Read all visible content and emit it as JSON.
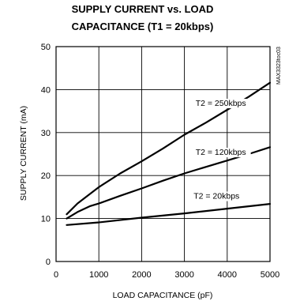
{
  "chart_data": {
    "type": "line",
    "title_lines": [
      "SUPPLY CURRENT vs. LOAD",
      "CAPACITANCE (T1 = 20kbps)"
    ],
    "xlabel": "LOAD CAPACITANCE (pF)",
    "ylabel": "SUPPLY CURRENT (mA)",
    "xlim": [
      0,
      5000
    ],
    "ylim": [
      0,
      50
    ],
    "x_ticks": [
      0,
      1000,
      2000,
      3000,
      4000,
      5000
    ],
    "y_ticks": [
      0,
      10,
      20,
      30,
      40,
      50
    ],
    "grid": true,
    "annotation": "MAX3323toc03",
    "series": [
      {
        "name": "T2 = 250kbps",
        "x": [
          250,
          500,
          1000,
          1500,
          2000,
          2500,
          3000,
          3500,
          4000,
          4500,
          5000
        ],
        "values": [
          11.0,
          13.5,
          17.3,
          20.5,
          23.3,
          26.3,
          29.5,
          32.3,
          35.3,
          38.3,
          41.6
        ]
      },
      {
        "name": "T2 = 120kbps",
        "x": [
          250,
          500,
          800,
          1000,
          1500,
          2000,
          2500,
          3000,
          3500,
          4000,
          4500,
          5000
        ],
        "values": [
          10.0,
          11.5,
          12.9,
          13.5,
          15.3,
          17.0,
          18.8,
          20.5,
          22.0,
          23.5,
          25.0,
          26.6
        ]
      },
      {
        "name": "T2 = 20kbps",
        "x": [
          250,
          1000,
          2000,
          3000,
          4000,
          5000
        ],
        "values": [
          8.5,
          9.1,
          10.2,
          11.2,
          12.3,
          13.4
        ]
      }
    ]
  }
}
